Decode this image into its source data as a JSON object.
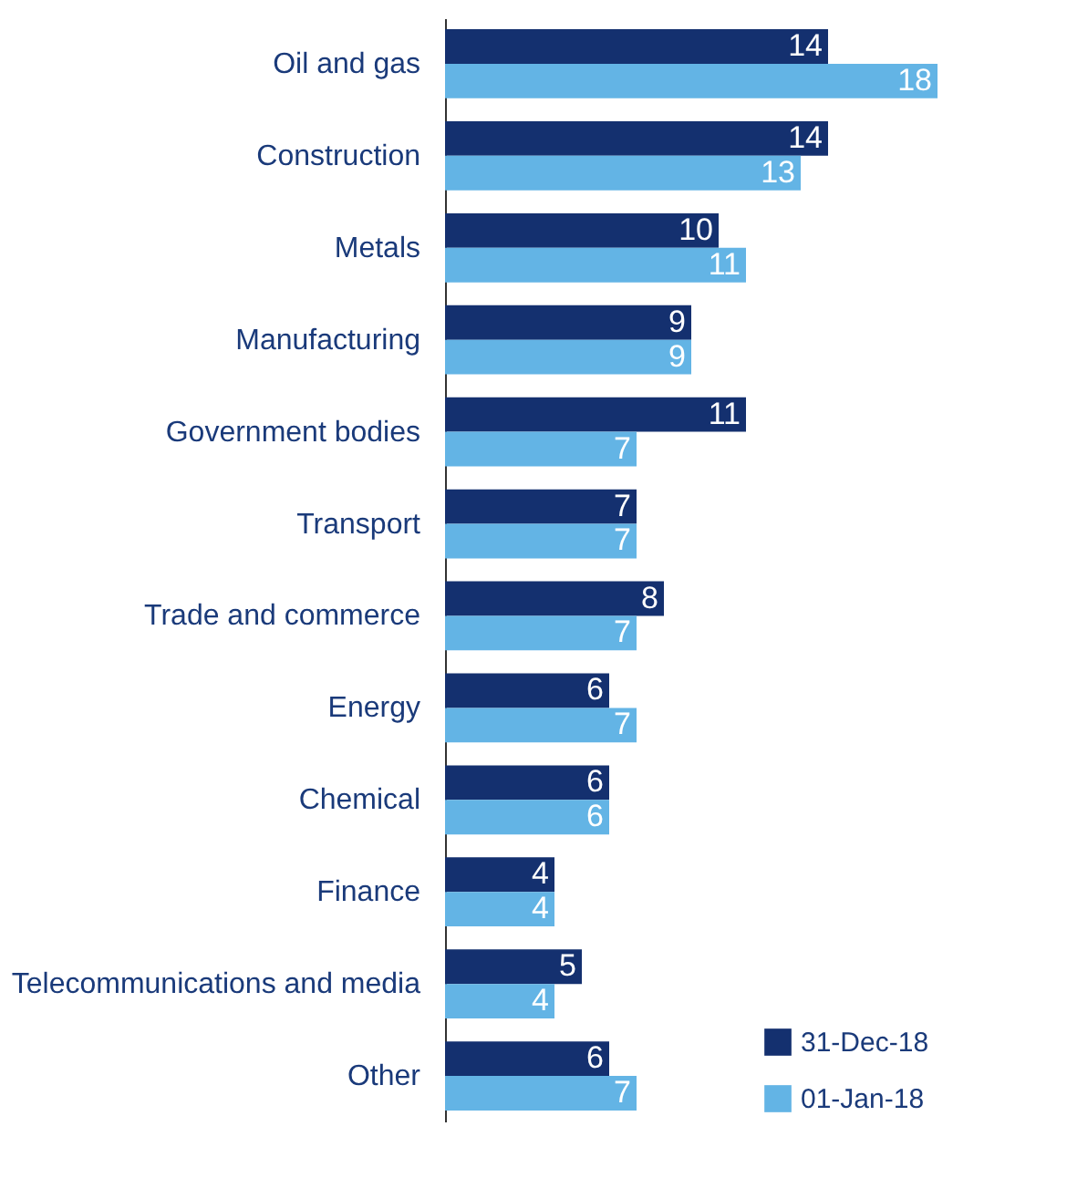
{
  "chart_data": {
    "type": "bar",
    "orientation": "horizontal",
    "categories": [
      "Oil and gas",
      "Construction",
      "Metals",
      "Manufacturing",
      "Government bodies",
      "Transport",
      "Trade and commerce",
      "Energy",
      "Chemical",
      "Finance",
      "Telecommunications and media",
      "Other"
    ],
    "series": [
      {
        "name": "31-Dec-18",
        "color": "#14306f",
        "values": [
          14,
          14,
          10,
          9,
          11,
          7,
          8,
          6,
          6,
          4,
          5,
          6
        ]
      },
      {
        "name": "01-Jan-18",
        "color": "#63b4e5",
        "values": [
          18,
          13,
          11,
          9,
          7,
          7,
          7,
          7,
          6,
          4,
          4,
          7
        ]
      }
    ],
    "data_labels": true,
    "legend": "bottom right",
    "grid": false
  }
}
